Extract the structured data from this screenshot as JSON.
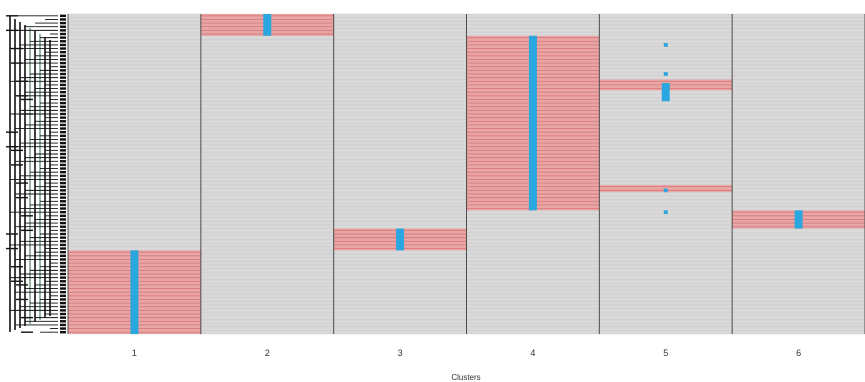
{
  "chart_data": {
    "type": "heatmap",
    "xlabel": "Clusters",
    "categories": [
      "1",
      "2",
      "3",
      "4",
      "5",
      "6"
    ],
    "row_count": 88,
    "clusters": [
      {
        "label": "1",
        "highlight_rows": [
          [
            65,
            87
          ]
        ],
        "marker_rows": [
          [
            65,
            87
          ]
        ]
      },
      {
        "label": "2",
        "highlight_rows": [
          [
            0,
            5
          ]
        ],
        "marker_rows": [
          [
            0,
            5
          ]
        ]
      },
      {
        "label": "3",
        "highlight_rows": [
          [
            59,
            64
          ]
        ],
        "marker_rows": [
          [
            59,
            64
          ]
        ]
      },
      {
        "label": "4",
        "highlight_rows": [
          [
            6,
            53
          ]
        ],
        "marker_rows": [
          [
            6,
            53
          ]
        ]
      },
      {
        "label": "5",
        "highlight_rows": [
          [
            18,
            20
          ],
          [
            47,
            48
          ]
        ],
        "marker_rows": [
          [
            8,
            8
          ],
          [
            16,
            16
          ],
          [
            19,
            23
          ],
          [
            48,
            48
          ],
          [
            54,
            54
          ]
        ]
      },
      {
        "label": "6",
        "highlight_rows": [
          [
            54,
            58
          ]
        ],
        "marker_rows": [
          [
            54,
            58
          ]
        ]
      }
    ],
    "colors": {
      "background": "#d9d9d9",
      "highlight": "#e8a6a6",
      "highlight_line": "#d97a7a",
      "marker": "#2aa7df",
      "divider": "#4d4d4d",
      "row_line": "#c4c4c4",
      "dendrogram": "#111111",
      "dendrogram_accent": "#7fa08a"
    }
  }
}
